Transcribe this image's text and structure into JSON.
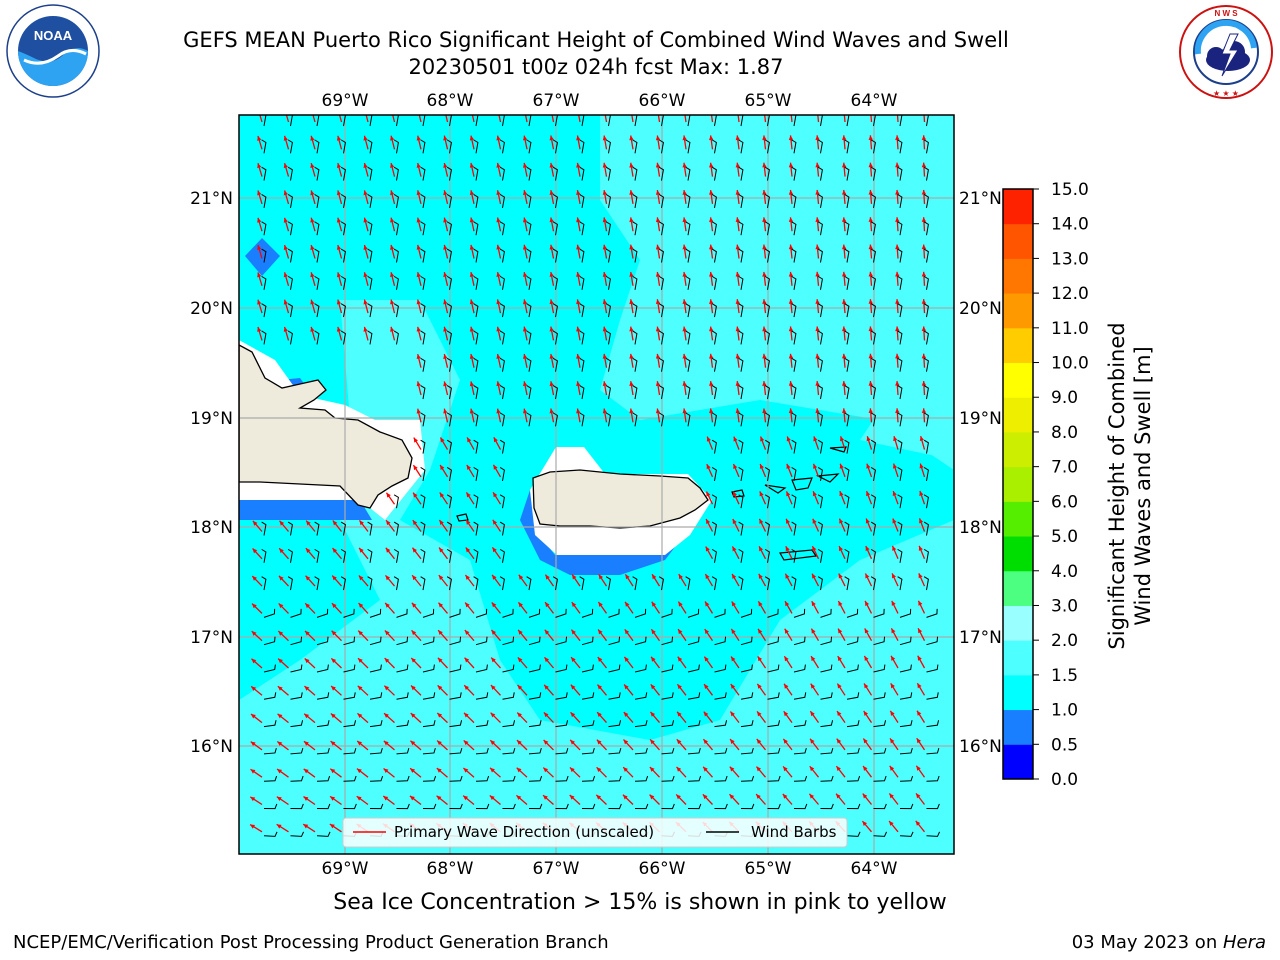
{
  "header": {
    "title_line1": "GEFS MEAN Puerto Rico Significant Height of Combined Wind Waves and Swell",
    "title_line2": "20230501 t00z 024h fcst   Max: 1.87"
  },
  "logos": {
    "left": {
      "name": "NOAA",
      "text": "NOAA",
      "ring_text": "NATIONAL OCEANIC AND ATMOSPHERIC ADMINISTRATION · U.S. DEPARTMENT OF COMMERCE"
    },
    "right": {
      "name": "National Weather Service",
      "ring_text": "NATIONAL WEATHER SERVICE"
    }
  },
  "map": {
    "lon_labels": [
      "69°W",
      "68°W",
      "67°W",
      "66°W",
      "65°W",
      "64°W"
    ],
    "lat_labels": [
      "21°N",
      "20°N",
      "19°N",
      "18°N",
      "17°N",
      "16°N"
    ],
    "legend": {
      "primary_wave": "Primary Wave Direction (unscaled)",
      "wind_barbs": "Wind Barbs"
    }
  },
  "colorbar": {
    "label_line1": "Significant Height of Combined",
    "label_line2": "Wind Waves and Swell [m]",
    "ticks": [
      "0.0",
      "0.5",
      "1.0",
      "1.5",
      "2.0",
      "3.0",
      "4.0",
      "5.0",
      "6.0",
      "7.0",
      "8.0",
      "9.0",
      "10.0",
      "11.0",
      "12.0",
      "13.0",
      "14.0",
      "15.0"
    ],
    "colors": [
      "#0000ff",
      "#1a7fff",
      "#00ffff",
      "#4dffff",
      "#99ffff",
      "#4dff80",
      "#00dd00",
      "#55ee00",
      "#aaee00",
      "#ccee00",
      "#eeee00",
      "#ffff00",
      "#ffcc00",
      "#ff9900",
      "#ff7700",
      "#ff5500",
      "#ff2200",
      "#ff0000"
    ]
  },
  "note": "Sea Ice Concentration > 15% is shown in pink to yellow",
  "footer": {
    "left": "NCEP/EMC/Verification Post Processing Product Generation Branch",
    "right_date": "03 May 2023 on ",
    "right_host": "Hera"
  }
}
